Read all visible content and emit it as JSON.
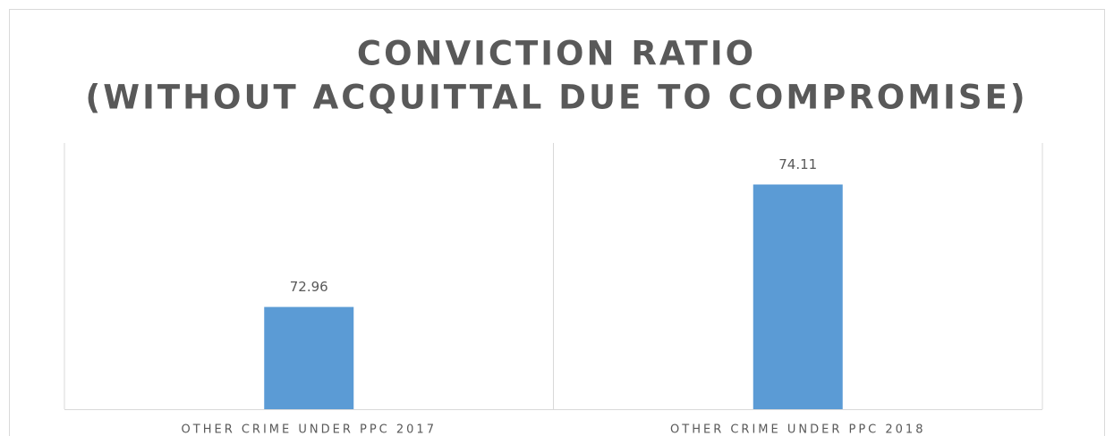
{
  "chart_data": {
    "type": "bar",
    "title": [
      "CONVICTION RATIO",
      "(WITHOUT ACQUITTAL DUE TO COMPROMISE)"
    ],
    "categories": [
      "OTHER CRIME UNDER PPC 2017",
      "OTHER CRIME UNDER PPC 2018"
    ],
    "values": [
      72.96,
      74.11
    ],
    "color": "#5b9bd5",
    "ylim": [
      72,
      74.5
    ]
  }
}
